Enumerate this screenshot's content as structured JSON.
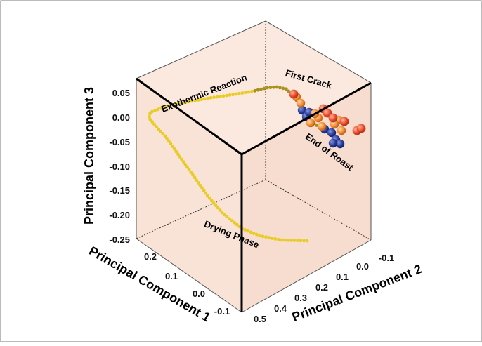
{
  "chart_data": {
    "type": "scatter3d",
    "title": "",
    "axes": {
      "x": {
        "label": "Principal Component 1",
        "ticks": [
          "0.2",
          "0.1",
          "0.0",
          "-0.1"
        ]
      },
      "y": {
        "label": "Principal Component 2",
        "ticks": [
          "0.5",
          "0.4",
          "0.3",
          "0.2",
          "0.1",
          "0.0",
          "-0.1"
        ]
      },
      "z": {
        "label": "Principal Component 3",
        "ticks": [
          "0.05",
          "0.00",
          "-0.05",
          "-0.10",
          "-0.15",
          "-0.20",
          "-0.25"
        ],
        "range": [
          -0.25,
          0.05
        ]
      }
    },
    "annotations": [
      "Exothermic Reaction",
      "First Crack",
      "End of Roast",
      "Drying Phase"
    ],
    "colors": {
      "pane": "#fbe9df",
      "trajectory": "#e8cc2a",
      "trajectory_dark": "#a8901a",
      "cluster_orange": "#f08a32",
      "cluster_red": "#e84a2a",
      "cluster_blue": "#283c9c"
    },
    "series": [
      {
        "marker": "small yellow dots (roast trajectory)",
        "count": 130
      },
      {
        "marker": "orange spheres",
        "count": 9
      },
      {
        "marker": "red spheres",
        "count": 7
      },
      {
        "marker": "blue spheres",
        "count": 8
      }
    ]
  }
}
